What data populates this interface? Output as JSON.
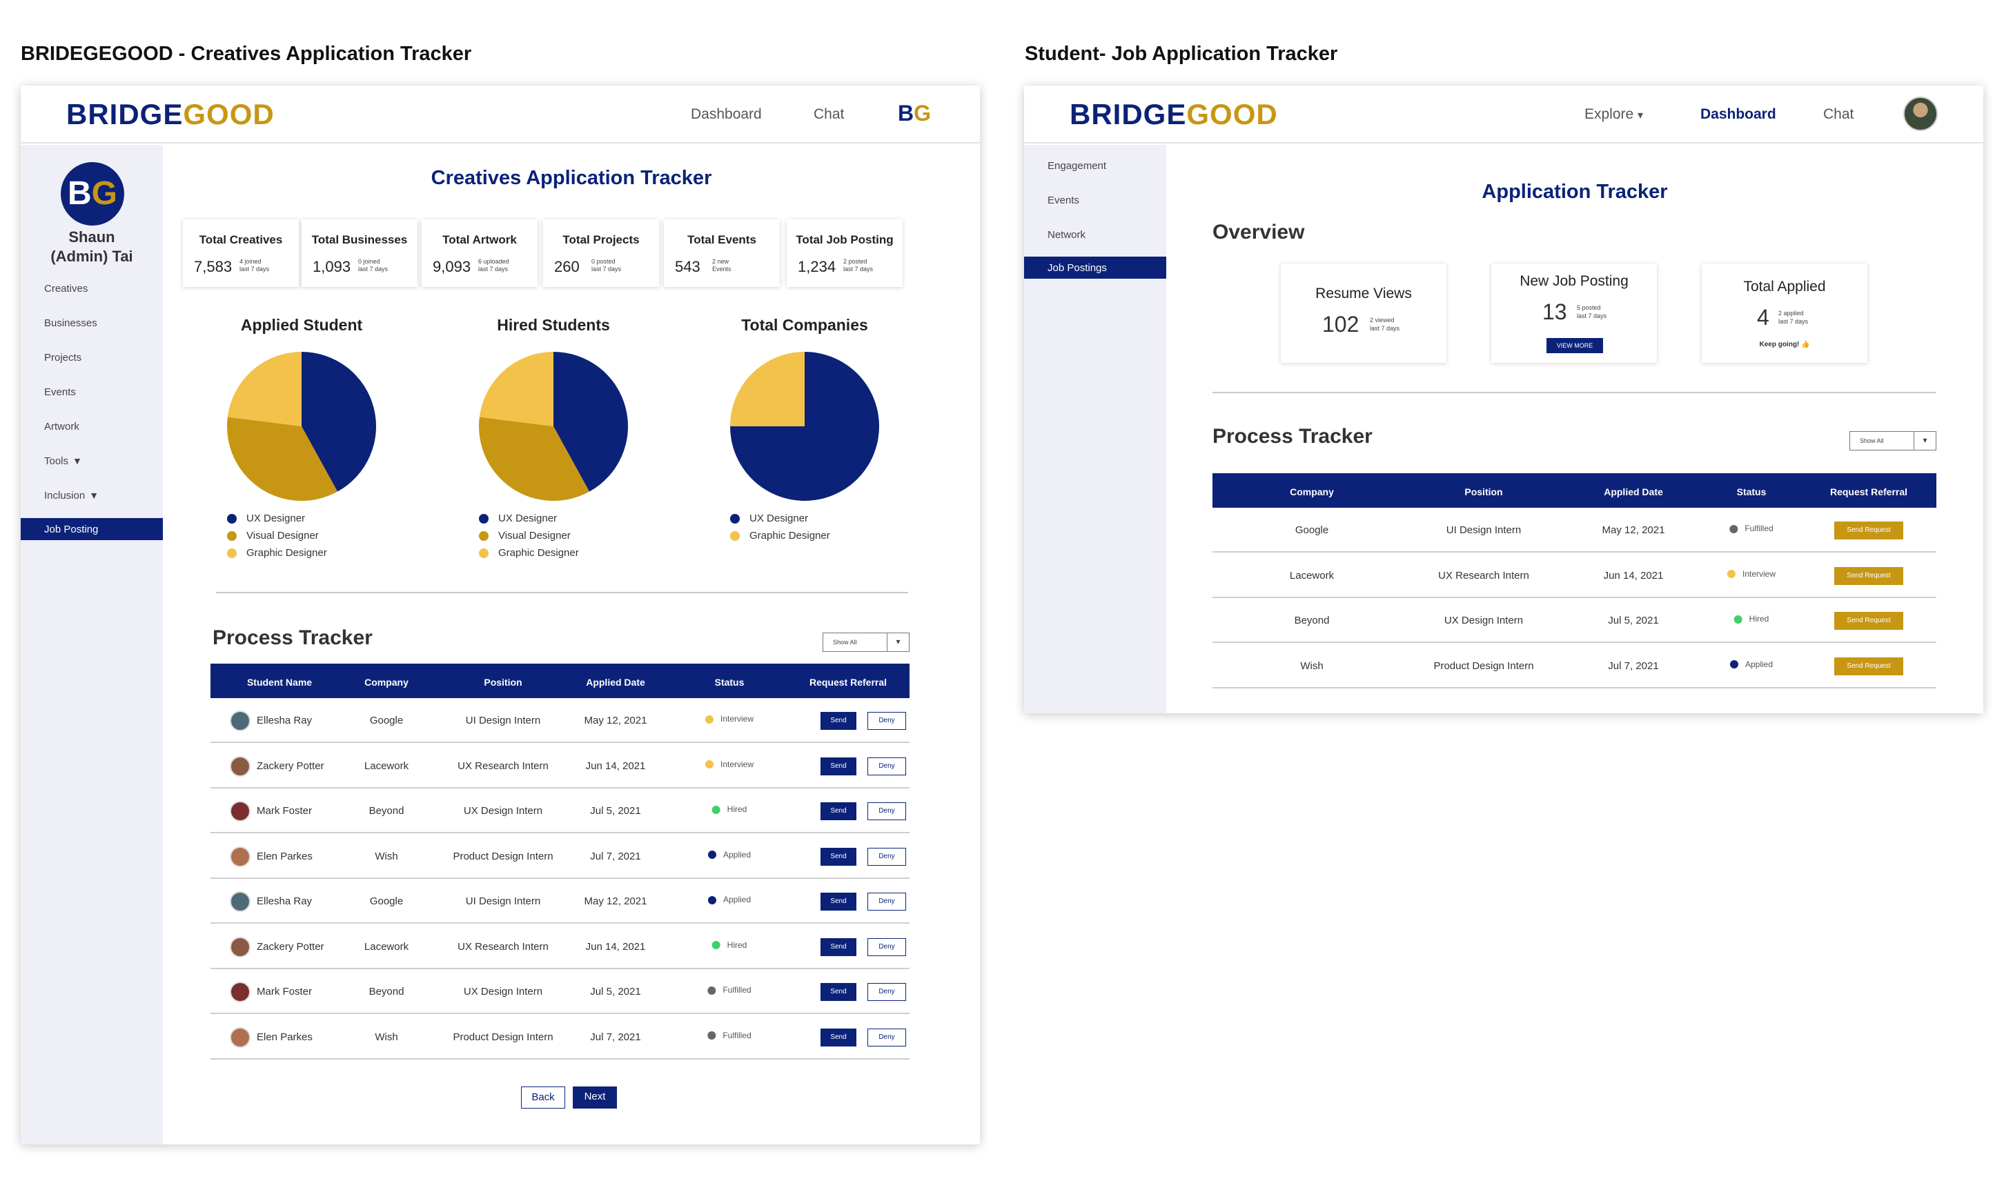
{
  "headings": {
    "left": "BRIDEGEGOOD - Creatives Application Tracker",
    "right": "Student- Job Application Tracker"
  },
  "brand": {
    "part1": "BRIDGE",
    "part2": "GOOD",
    "primary": "#0b2278",
    "gold": "#c79613"
  },
  "admin": {
    "nav": {
      "dashboard": "Dashboard",
      "chat": "Chat",
      "monogram_b": "B",
      "monogram_g": "G"
    },
    "avatar_b": "B",
    "avatar_g": "G",
    "user_name": "Shaun (Admin) Tai",
    "sidebar": [
      "Creatives",
      "Businesses",
      "Projects",
      "Events",
      "Artwork",
      "Tools",
      "Inclusion"
    ],
    "sidebar_dropdown_icon": "caret-down-icon",
    "sidebar_active": "Job Posting",
    "page_title": "Creatives Application Tracker",
    "stats": [
      {
        "title": "Total Creatives",
        "value": "7,583",
        "sub1": "4 joined",
        "sub2": "last 7 days"
      },
      {
        "title": "Total Businesses",
        "value": "1,093",
        "sub1": "0 joined",
        "sub2": "last 7 days"
      },
      {
        "title": "Total Artwork",
        "value": "9,093",
        "sub1": "6 uploaded",
        "sub2": "last 7 days"
      },
      {
        "title": "Total Projects",
        "value": "260",
        "sub1": "0 posted",
        "sub2": "last 7 days"
      },
      {
        "title": "Total Events",
        "value": "543",
        "sub1": "2 new",
        "sub2": "Events"
      },
      {
        "title": "Total Job Posting",
        "value": "1,234",
        "sub1": "2 posted",
        "sub2": "last 7 days"
      }
    ],
    "chart_data": [
      {
        "type": "pie",
        "title": "Applied Student",
        "labels": [
          "UX Designer",
          "Visual Designer",
          "Graphic Designer"
        ],
        "values": [
          42,
          35,
          23
        ],
        "colors": [
          "#0b2278",
          "#c79613",
          "#f2c24a"
        ]
      },
      {
        "type": "pie",
        "title": "Hired Students",
        "labels": [
          "UX Designer",
          "Visual Designer",
          "Graphic Designer"
        ],
        "values": [
          42,
          35,
          23
        ],
        "colors": [
          "#0b2278",
          "#c79613",
          "#f2c24a"
        ]
      },
      {
        "type": "pie",
        "title": "Total Companies",
        "labels": [
          "UX Designer",
          "Graphic Designer"
        ],
        "values": [
          75,
          25
        ],
        "colors": [
          "#0b2278",
          "#f2c24a"
        ]
      }
    ],
    "process_title": "Process Tracker",
    "filter": "Show All",
    "table_headers": [
      "Student Name",
      "Company",
      "Position",
      "Applied Date",
      "Status",
      "Request Referral"
    ],
    "rows": [
      {
        "name": "Ellesha Ray",
        "company": "Google",
        "position": "UI Design Intern",
        "date": "May 12, 2021",
        "status": "Interview",
        "status_color": "#f2c24a"
      },
      {
        "name": "Zackery Potter",
        "company": "Lacework",
        "position": "UX Research Intern",
        "date": "Jun 14, 2021",
        "status": "Interview",
        "status_color": "#f2c24a"
      },
      {
        "name": "Mark Foster",
        "company": "Beyond",
        "position": "UX Design Intern",
        "date": "Jul 5, 2021",
        "status": "Hired",
        "status_color": "#3fd06a"
      },
      {
        "name": "Elen Parkes",
        "company": "Wish",
        "position": "Product Design Intern",
        "date": "Jul 7, 2021",
        "status": "Applied",
        "status_color": "#0b2278"
      },
      {
        "name": "Ellesha Ray",
        "company": "Google",
        "position": "UI Design Intern",
        "date": "May 12, 2021",
        "status": "Applied",
        "status_color": "#0b2278"
      },
      {
        "name": "Zackery Potter",
        "company": "Lacework",
        "position": "UX Research Intern",
        "date": "Jun 14, 2021",
        "status": "Hired",
        "status_color": "#3fd06a"
      },
      {
        "name": "Mark Foster",
        "company": "Beyond",
        "position": "UX Design Intern",
        "date": "Jul 5, 2021",
        "status": "Fulfilled",
        "status_color": "#666666"
      },
      {
        "name": "Elen Parkes",
        "company": "Wish",
        "position": "Product Design Intern",
        "date": "Jul 7, 2021",
        "status": "Fulfilled",
        "status_color": "#666666"
      }
    ],
    "send_label": "Send",
    "deny_label": "Deny",
    "back_label": "Back",
    "next_label": "Next"
  },
  "student": {
    "nav": {
      "explore": "Explore",
      "dashboard": "Dashboard",
      "chat": "Chat"
    },
    "sidebar": [
      "Engagement",
      "Events",
      "Network"
    ],
    "sidebar_active": "Job Postings",
    "page_title": "Application Tracker",
    "overview": "Overview",
    "cards": [
      {
        "title": "Resume Views",
        "value": "102",
        "sub1": "2 viewed",
        "sub2": "last 7 days",
        "extra": ""
      },
      {
        "title": "New Job Posting",
        "value": "13",
        "sub1": "5 posted",
        "sub2": "last 7 days",
        "extra": "VIEW MORE"
      },
      {
        "title": "Total Applied",
        "value": "4",
        "sub1": "2 applied",
        "sub2": "last 7 days",
        "extra": "Keep going! 👍"
      }
    ],
    "process_title": "Process Tracker",
    "filter": "Show All",
    "table_headers": [
      "Company",
      "Position",
      "Applied Date",
      "Status",
      "Request Referral"
    ],
    "rows": [
      {
        "company": "Google",
        "position": "UI Design Intern",
        "date": "May 12, 2021",
        "status": "Fulfilled",
        "status_color": "#666666"
      },
      {
        "company": "Lacework",
        "position": "UX Research Intern",
        "date": "Jun 14, 2021",
        "status": "Interview",
        "status_color": "#f2c24a"
      },
      {
        "company": "Beyond",
        "position": "UX Design Intern",
        "date": "Jul 5, 2021",
        "status": "Hired",
        "status_color": "#3fd06a"
      },
      {
        "company": "Wish",
        "position": "Product Design Intern",
        "date": "Jul 7, 2021",
        "status": "Applied",
        "status_color": "#0b2278"
      }
    ],
    "send_request_label": "Send Request"
  }
}
